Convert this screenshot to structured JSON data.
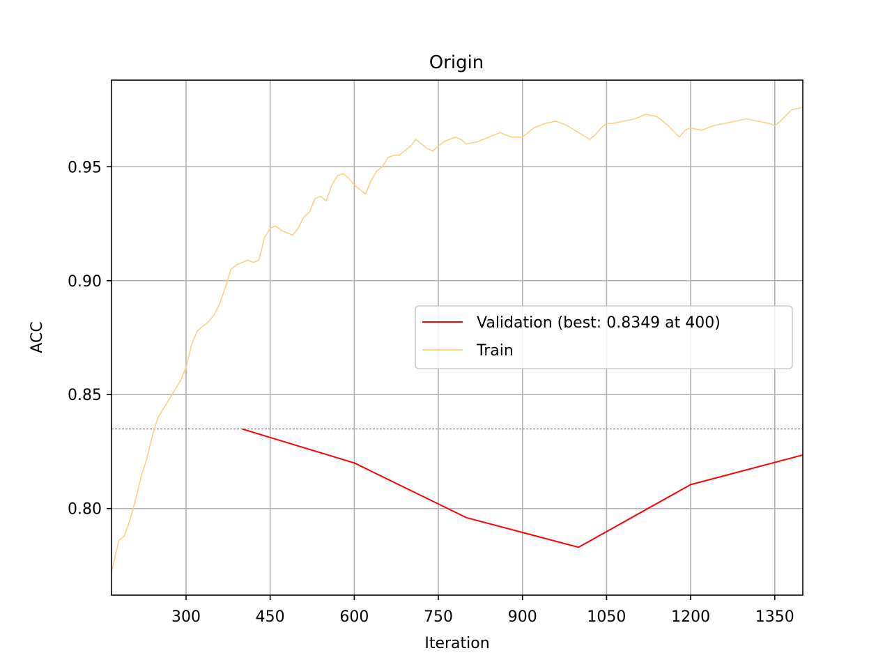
{
  "chart_data": {
    "type": "line",
    "title": "Origin",
    "xlabel": "Iteration",
    "ylabel": "ACC",
    "xlim": [
      167,
      1400
    ],
    "ylim": [
      0.762,
      0.988
    ],
    "xticks": [
      300,
      450,
      600,
      750,
      900,
      1050,
      1200,
      1350
    ],
    "xtick_labels": [
      "300",
      "450",
      "600",
      "750",
      "900",
      "1050",
      "1200",
      "1350"
    ],
    "yticks": [
      0.8,
      0.85,
      0.9,
      0.95
    ],
    "ytick_labels": [
      "0.80",
      "0.85",
      "0.90",
      "0.95"
    ],
    "grid": true,
    "legend_position": "center-right",
    "best_line": {
      "y": 0.8349,
      "color": "#d62728",
      "style": "dashed"
    },
    "series": [
      {
        "name": "Validation (best: 0.8349 at 400)",
        "color": "#ff0000",
        "x": [
          400,
          600,
          800,
          1000,
          1200,
          1400
        ],
        "y": [
          0.8349,
          0.82,
          0.796,
          0.783,
          0.8105,
          0.8235
        ]
      },
      {
        "name": "Train",
        "color": "#fdd085",
        "x": [
          167,
          180,
          190,
          200,
          210,
          220,
          230,
          240,
          250,
          260,
          270,
          280,
          290,
          300,
          310,
          320,
          330,
          340,
          350,
          360,
          370,
          380,
          390,
          400,
          410,
          420,
          430,
          440,
          450,
          460,
          470,
          480,
          490,
          500,
          510,
          520,
          530,
          540,
          550,
          560,
          570,
          580,
          590,
          600,
          610,
          620,
          630,
          640,
          650,
          660,
          670,
          680,
          690,
          700,
          710,
          720,
          730,
          740,
          750,
          760,
          770,
          780,
          790,
          800,
          820,
          840,
          860,
          880,
          900,
          920,
          940,
          960,
          980,
          1000,
          1020,
          1030,
          1040,
          1050,
          1060,
          1080,
          1100,
          1120,
          1140,
          1160,
          1180,
          1190,
          1200,
          1220,
          1240,
          1260,
          1280,
          1300,
          1320,
          1340,
          1350,
          1360,
          1380,
          1400
        ],
        "y": [
          0.772,
          0.786,
          0.788,
          0.795,
          0.804,
          0.814,
          0.822,
          0.832,
          0.84,
          0.844,
          0.848,
          0.852,
          0.856,
          0.862,
          0.872,
          0.878,
          0.88,
          0.882,
          0.885,
          0.89,
          0.897,
          0.905,
          0.907,
          0.908,
          0.909,
          0.908,
          0.909,
          0.919,
          0.923,
          0.924,
          0.922,
          0.921,
          0.92,
          0.923,
          0.928,
          0.93,
          0.936,
          0.937,
          0.935,
          0.942,
          0.946,
          0.947,
          0.945,
          0.942,
          0.94,
          0.938,
          0.944,
          0.948,
          0.95,
          0.954,
          0.955,
          0.955,
          0.957,
          0.959,
          0.962,
          0.96,
          0.958,
          0.957,
          0.959,
          0.961,
          0.962,
          0.963,
          0.962,
          0.96,
          0.961,
          0.963,
          0.965,
          0.963,
          0.963,
          0.967,
          0.969,
          0.97,
          0.968,
          0.965,
          0.962,
          0.964,
          0.967,
          0.969,
          0.969,
          0.97,
          0.971,
          0.973,
          0.972,
          0.968,
          0.963,
          0.966,
          0.967,
          0.966,
          0.968,
          0.969,
          0.97,
          0.971,
          0.97,
          0.969,
          0.968,
          0.97,
          0.975,
          0.976
        ]
      }
    ]
  }
}
